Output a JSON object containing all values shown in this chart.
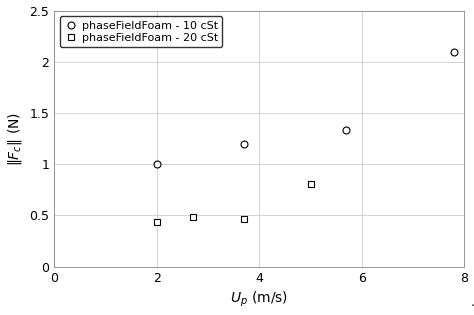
{
  "series_circle": {
    "label": "phaseFieldFoam - 10 cSt",
    "x": [
      0.02,
      0.037,
      0.057,
      0.078
    ],
    "y": [
      1e-08,
      1.2e-08,
      1.33e-08,
      2.1e-08
    ],
    "marker": "o",
    "markersize": 5,
    "color": "black",
    "markerfacecolor": "white"
  },
  "series_square": {
    "label": "phaseFieldFoam - 20 cSt",
    "x": [
      0.02,
      0.027,
      0.037,
      0.05
    ],
    "y": [
      4.4e-09,
      4.9e-09,
      4.7e-09,
      8.1e-09
    ],
    "marker": "s",
    "markersize": 5,
    "color": "black",
    "markerfacecolor": "white"
  },
  "xlim": [
    0,
    0.08
  ],
  "ylim": [
    0,
    2.5e-08
  ],
  "xticks": [
    0,
    0.02,
    0.04,
    0.06,
    0.08
  ],
  "xtick_labels": [
    "0",
    "2",
    "4",
    "6",
    "8"
  ],
  "yticks": [
    0,
    5e-09,
    1e-08,
    1.5e-08,
    2e-08,
    2.5e-08
  ],
  "ytick_labels": [
    "0",
    "0.5",
    "1",
    "1.5",
    "2",
    "2.5"
  ],
  "grid": true,
  "tick_fontsize": 9,
  "label_fontsize": 10,
  "legend_fontsize": 8
}
